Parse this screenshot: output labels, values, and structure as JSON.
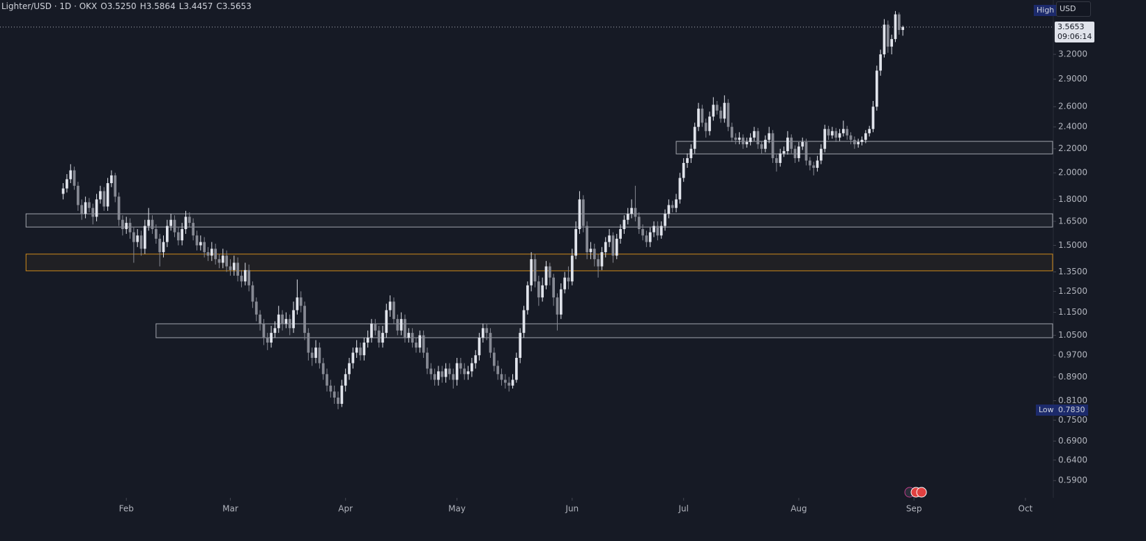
{
  "chart_data": {
    "type": "candlestick",
    "title": "Lighter/USD · 1D · OKX",
    "ohlc_text": [
      "O3.5250",
      "H3.5864",
      "L3.4457",
      "C3.5653"
    ],
    "currency": "USD",
    "high_marker": "High",
    "low_marker": {
      "label": "Low",
      "value": "0.7830"
    },
    "last_price": {
      "value": 3.5653,
      "label": "3.5653"
    },
    "countdown": "09:06:14",
    "up_color": "#e0e3eb",
    "down_color": "#868993",
    "log": true,
    "xlim": [
      -17,
      266.5
    ],
    "ylim": [
      0.551,
      3.97
    ],
    "xticks": [
      {
        "value": 17,
        "label": "Feb"
      },
      {
        "value": 45,
        "label": "Mar"
      },
      {
        "value": 76,
        "label": "Apr"
      },
      {
        "value": 106,
        "label": "May"
      },
      {
        "value": 137,
        "label": "Jun"
      },
      {
        "value": 167,
        "label": "Jul"
      },
      {
        "value": 198,
        "label": "Aug"
      },
      {
        "value": 229,
        "label": "Sep"
      },
      {
        "value": 259,
        "label": "Oct"
      }
    ],
    "yticks": [
      {
        "value": 3.2,
        "label": "3.2000"
      },
      {
        "value": 2.9,
        "label": "2.9000"
      },
      {
        "value": 2.6,
        "label": "2.6000"
      },
      {
        "value": 2.4,
        "label": "2.4000"
      },
      {
        "value": 2.2,
        "label": "2.2000"
      },
      {
        "value": 2.0,
        "label": "2.0000"
      },
      {
        "value": 1.8,
        "label": "1.8000"
      },
      {
        "value": 1.65,
        "label": "1.6500"
      },
      {
        "value": 1.5,
        "label": "1.5000"
      },
      {
        "value": 1.35,
        "label": "1.3500"
      },
      {
        "value": 1.25,
        "label": "1.2500"
      },
      {
        "value": 1.15,
        "label": "1.1500"
      },
      {
        "value": 1.05,
        "label": "1.0500"
      },
      {
        "value": 0.97,
        "label": "0.9700"
      },
      {
        "value": 0.89,
        "label": "0.8900"
      },
      {
        "value": 0.81,
        "label": "0.8100"
      },
      {
        "value": 0.75,
        "label": "0.7500"
      },
      {
        "value": 0.69,
        "label": "0.6900"
      },
      {
        "value": 0.64,
        "label": "0.6400"
      },
      {
        "value": 0.59,
        "label": "0.5900"
      }
    ],
    "zones": [
      {
        "start": -10,
        "low": 1.613,
        "high": 1.7,
        "color": "#a3a6af"
      },
      {
        "start": -10,
        "low": 1.356,
        "high": 1.449,
        "color": "#d18b1b"
      },
      {
        "start": 25,
        "low": 1.04,
        "high": 1.099,
        "color": "#a3a6af"
      },
      {
        "start": 165,
        "low": 2.156,
        "high": 2.266,
        "color": "#a3a6af"
      }
    ],
    "candles": [
      [
        1.84,
        1.92,
        1.8,
        1.88
      ],
      [
        1.88,
        1.99,
        1.85,
        1.95
      ],
      [
        1.95,
        2.07,
        1.92,
        2.02
      ],
      [
        2.02,
        2.05,
        1.87,
        1.9
      ],
      [
        1.9,
        1.93,
        1.72,
        1.76
      ],
      [
        1.76,
        1.8,
        1.66,
        1.7
      ],
      [
        1.7,
        1.82,
        1.67,
        1.78
      ],
      [
        1.78,
        1.81,
        1.71,
        1.74
      ],
      [
        1.74,
        1.77,
        1.63,
        1.68
      ],
      [
        1.68,
        1.84,
        1.65,
        1.8
      ],
      [
        1.8,
        1.9,
        1.77,
        1.86
      ],
      [
        1.86,
        1.89,
        1.72,
        1.75
      ],
      [
        1.75,
        1.96,
        1.72,
        1.92
      ],
      [
        1.92,
        2.02,
        1.89,
        1.98
      ],
      [
        1.98,
        2.0,
        1.78,
        1.82
      ],
      [
        1.82,
        1.85,
        1.62,
        1.66
      ],
      [
        1.66,
        1.69,
        1.56,
        1.6
      ],
      [
        1.6,
        1.68,
        1.57,
        1.64
      ],
      [
        1.64,
        1.67,
        1.54,
        1.58
      ],
      [
        1.58,
        1.61,
        1.4,
        1.52
      ],
      [
        1.52,
        1.6,
        1.49,
        1.56
      ],
      [
        1.56,
        1.59,
        1.44,
        1.48
      ],
      [
        1.48,
        1.66,
        1.45,
        1.62
      ],
      [
        1.62,
        1.74,
        1.59,
        1.66
      ],
      [
        1.66,
        1.69,
        1.57,
        1.6
      ],
      [
        1.6,
        1.63,
        1.51,
        1.54
      ],
      [
        1.54,
        1.57,
        1.38,
        1.46
      ],
      [
        1.46,
        1.56,
        1.43,
        1.52
      ],
      [
        1.52,
        1.66,
        1.49,
        1.62
      ],
      [
        1.62,
        1.7,
        1.59,
        1.66
      ],
      [
        1.66,
        1.69,
        1.55,
        1.58
      ],
      [
        1.58,
        1.61,
        1.5,
        1.53
      ],
      [
        1.53,
        1.64,
        1.5,
        1.6
      ],
      [
        1.6,
        1.72,
        1.57,
        1.68
      ],
      [
        1.68,
        1.71,
        1.61,
        1.64
      ],
      [
        1.64,
        1.67,
        1.53,
        1.56
      ],
      [
        1.56,
        1.59,
        1.47,
        1.5
      ],
      [
        1.5,
        1.56,
        1.47,
        1.52
      ],
      [
        1.52,
        1.55,
        1.43,
        1.46
      ],
      [
        1.46,
        1.49,
        1.41,
        1.44
      ],
      [
        1.44,
        1.52,
        1.41,
        1.48
      ],
      [
        1.48,
        1.51,
        1.39,
        1.42
      ],
      [
        1.42,
        1.45,
        1.37,
        1.4
      ],
      [
        1.4,
        1.48,
        1.37,
        1.44
      ],
      [
        1.44,
        1.47,
        1.35,
        1.38
      ],
      [
        1.38,
        1.42,
        1.33,
        1.36
      ],
      [
        1.36,
        1.44,
        1.33,
        1.4
      ],
      [
        1.4,
        1.43,
        1.3,
        1.33
      ],
      [
        1.33,
        1.36,
        1.27,
        1.3
      ],
      [
        1.3,
        1.4,
        1.28,
        1.36
      ],
      [
        1.36,
        1.39,
        1.25,
        1.28
      ],
      [
        1.28,
        1.3,
        1.17,
        1.2
      ],
      [
        1.2,
        1.22,
        1.11,
        1.14
      ],
      [
        1.14,
        1.16,
        1.07,
        1.1
      ],
      [
        1.1,
        1.12,
        1.01,
        1.04
      ],
      [
        1.04,
        1.06,
        0.99,
        1.02
      ],
      [
        1.02,
        1.09,
        1.0,
        1.06
      ],
      [
        1.06,
        1.11,
        1.04,
        1.08
      ],
      [
        1.08,
        1.18,
        1.06,
        1.14
      ],
      [
        1.14,
        1.16,
        1.07,
        1.1
      ],
      [
        1.1,
        1.15,
        1.08,
        1.12
      ],
      [
        1.12,
        1.14,
        1.05,
        1.08
      ],
      [
        1.08,
        1.2,
        1.06,
        1.16
      ],
      [
        1.16,
        1.31,
        1.14,
        1.22
      ],
      [
        1.22,
        1.25,
        1.15,
        1.18
      ],
      [
        1.18,
        1.2,
        1.03,
        1.06
      ],
      [
        1.06,
        1.08,
        0.95,
        0.98
      ],
      [
        0.98,
        1.0,
        0.93,
        0.96
      ],
      [
        0.96,
        1.03,
        0.94,
        1.0
      ],
      [
        1.0,
        1.02,
        0.92,
        0.94
      ],
      [
        0.94,
        0.96,
        0.88,
        0.9
      ],
      [
        0.9,
        0.92,
        0.84,
        0.86
      ],
      [
        0.86,
        0.88,
        0.82,
        0.84
      ],
      [
        0.84,
        0.86,
        0.8,
        0.82
      ],
      [
        0.82,
        0.84,
        0.783,
        0.8
      ],
      [
        0.8,
        0.88,
        0.79,
        0.86
      ],
      [
        0.86,
        0.92,
        0.84,
        0.9
      ],
      [
        0.9,
        0.96,
        0.88,
        0.94
      ],
      [
        0.94,
        1.0,
        0.92,
        0.98
      ],
      [
        0.98,
        1.03,
        0.96,
        1.0
      ],
      [
        1.0,
        1.02,
        0.95,
        0.97
      ],
      [
        0.97,
        1.04,
        0.95,
        1.02
      ],
      [
        1.02,
        1.07,
        1.0,
        1.04
      ],
      [
        1.04,
        1.12,
        1.02,
        1.1
      ],
      [
        1.1,
        1.12,
        1.05,
        1.07
      ],
      [
        1.07,
        1.09,
        1.0,
        1.02
      ],
      [
        1.02,
        1.09,
        1.0,
        1.06
      ],
      [
        1.06,
        1.19,
        1.04,
        1.16
      ],
      [
        1.16,
        1.23,
        1.13,
        1.2
      ],
      [
        1.2,
        1.22,
        1.1,
        1.12
      ],
      [
        1.12,
        1.14,
        1.05,
        1.07
      ],
      [
        1.07,
        1.15,
        1.05,
        1.12
      ],
      [
        1.12,
        1.14,
        1.02,
        1.04
      ],
      [
        1.04,
        1.08,
        1.02,
        1.06
      ],
      [
        1.06,
        1.08,
        1.0,
        1.02
      ],
      [
        1.02,
        1.04,
        0.98,
        1.0
      ],
      [
        1.0,
        1.07,
        0.98,
        1.05
      ],
      [
        1.05,
        1.07,
        0.96,
        0.98
      ],
      [
        0.98,
        1.0,
        0.9,
        0.92
      ],
      [
        0.92,
        0.94,
        0.88,
        0.9
      ],
      [
        0.9,
        0.92,
        0.86,
        0.88
      ],
      [
        0.88,
        0.93,
        0.86,
        0.91
      ],
      [
        0.91,
        0.93,
        0.87,
        0.89
      ],
      [
        0.89,
        0.94,
        0.87,
        0.92
      ],
      [
        0.92,
        0.94,
        0.88,
        0.9
      ],
      [
        0.9,
        0.92,
        0.85,
        0.88
      ],
      [
        0.88,
        0.96,
        0.86,
        0.94
      ],
      [
        0.94,
        0.96,
        0.9,
        0.92
      ],
      [
        0.92,
        0.94,
        0.88,
        0.9
      ],
      [
        0.9,
        0.93,
        0.88,
        0.91
      ],
      [
        0.91,
        0.96,
        0.89,
        0.94
      ],
      [
        0.94,
        0.99,
        0.92,
        0.97
      ],
      [
        0.97,
        1.06,
        0.95,
        1.04
      ],
      [
        1.04,
        1.1,
        1.02,
        1.08
      ],
      [
        1.08,
        1.1,
        1.03,
        1.06
      ],
      [
        1.06,
        1.08,
        0.96,
        0.98
      ],
      [
        0.98,
        1.0,
        0.91,
        0.93
      ],
      [
        0.93,
        0.95,
        0.88,
        0.9
      ],
      [
        0.9,
        0.92,
        0.86,
        0.88
      ],
      [
        0.88,
        0.9,
        0.85,
        0.87
      ],
      [
        0.87,
        0.89,
        0.84,
        0.86
      ],
      [
        0.86,
        0.9,
        0.85,
        0.88
      ],
      [
        0.88,
        0.98,
        0.87,
        0.96
      ],
      [
        0.96,
        1.08,
        0.94,
        1.06
      ],
      [
        1.06,
        1.18,
        1.04,
        1.16
      ],
      [
        1.16,
        1.3,
        1.14,
        1.28
      ],
      [
        1.28,
        1.46,
        1.25,
        1.42
      ],
      [
        1.42,
        1.45,
        1.27,
        1.3
      ],
      [
        1.3,
        1.33,
        1.18,
        1.22
      ],
      [
        1.22,
        1.32,
        1.2,
        1.28
      ],
      [
        1.28,
        1.41,
        1.26,
        1.38
      ],
      [
        1.38,
        1.4,
        1.28,
        1.32
      ],
      [
        1.32,
        1.34,
        1.18,
        1.22
      ],
      [
        1.22,
        1.24,
        1.07,
        1.14
      ],
      [
        1.14,
        1.29,
        1.12,
        1.26
      ],
      [
        1.26,
        1.35,
        1.24,
        1.32
      ],
      [
        1.32,
        1.38,
        1.26,
        1.3
      ],
      [
        1.3,
        1.48,
        1.28,
        1.44
      ],
      [
        1.44,
        1.65,
        1.42,
        1.6
      ],
      [
        1.6,
        1.86,
        1.57,
        1.8
      ],
      [
        1.8,
        1.83,
        1.58,
        1.62
      ],
      [
        1.62,
        1.65,
        1.42,
        1.46
      ],
      [
        1.46,
        1.52,
        1.42,
        1.48
      ],
      [
        1.48,
        1.51,
        1.38,
        1.42
      ],
      [
        1.42,
        1.45,
        1.32,
        1.38
      ],
      [
        1.38,
        1.49,
        1.36,
        1.46
      ],
      [
        1.46,
        1.55,
        1.43,
        1.52
      ],
      [
        1.52,
        1.6,
        1.49,
        1.56
      ],
      [
        1.56,
        1.58,
        1.4,
        1.44
      ],
      [
        1.44,
        1.57,
        1.42,
        1.54
      ],
      [
        1.54,
        1.63,
        1.51,
        1.6
      ],
      [
        1.6,
        1.69,
        1.57,
        1.66
      ],
      [
        1.66,
        1.74,
        1.63,
        1.7
      ],
      [
        1.7,
        1.8,
        1.67,
        1.74
      ],
      [
        1.74,
        1.9,
        1.65,
        1.68
      ],
      [
        1.68,
        1.71,
        1.57,
        1.6
      ],
      [
        1.6,
        1.63,
        1.53,
        1.56
      ],
      [
        1.56,
        1.59,
        1.49,
        1.52
      ],
      [
        1.52,
        1.61,
        1.49,
        1.58
      ],
      [
        1.58,
        1.65,
        1.55,
        1.62
      ],
      [
        1.62,
        1.65,
        1.53,
        1.56
      ],
      [
        1.56,
        1.65,
        1.54,
        1.62
      ],
      [
        1.62,
        1.73,
        1.59,
        1.7
      ],
      [
        1.7,
        1.8,
        1.67,
        1.76
      ],
      [
        1.76,
        1.79,
        1.71,
        1.74
      ],
      [
        1.74,
        1.84,
        1.71,
        1.8
      ],
      [
        1.8,
        2.0,
        1.77,
        1.96
      ],
      [
        1.96,
        2.12,
        1.93,
        2.08
      ],
      [
        2.08,
        2.16,
        2.04,
        2.12
      ],
      [
        2.12,
        2.24,
        2.08,
        2.2
      ],
      [
        2.2,
        2.44,
        2.16,
        2.4
      ],
      [
        2.4,
        2.64,
        2.36,
        2.58
      ],
      [
        2.58,
        2.62,
        2.4,
        2.44
      ],
      [
        2.44,
        2.48,
        2.3,
        2.36
      ],
      [
        2.36,
        2.55,
        2.32,
        2.5
      ],
      [
        2.5,
        2.7,
        2.46,
        2.62
      ],
      [
        2.62,
        2.66,
        2.52,
        2.56
      ],
      [
        2.56,
        2.6,
        2.44,
        2.48
      ],
      [
        2.48,
        2.72,
        2.44,
        2.64
      ],
      [
        2.64,
        2.68,
        2.36,
        2.4
      ],
      [
        2.4,
        2.44,
        2.26,
        2.3
      ],
      [
        2.3,
        2.34,
        2.24,
        2.28
      ],
      [
        2.28,
        2.35,
        2.24,
        2.3
      ],
      [
        2.3,
        2.33,
        2.2,
        2.24
      ],
      [
        2.24,
        2.3,
        2.21,
        2.26
      ],
      [
        2.26,
        2.34,
        2.23,
        2.3
      ],
      [
        2.3,
        2.4,
        2.27,
        2.36
      ],
      [
        2.36,
        2.39,
        2.2,
        2.24
      ],
      [
        2.24,
        2.27,
        2.16,
        2.2
      ],
      [
        2.2,
        2.32,
        2.17,
        2.28
      ],
      [
        2.28,
        2.4,
        2.25,
        2.34
      ],
      [
        2.34,
        2.37,
        2.08,
        2.12
      ],
      [
        2.12,
        2.15,
        2.01,
        2.08
      ],
      [
        2.08,
        2.2,
        2.05,
        2.16
      ],
      [
        2.16,
        2.22,
        2.13,
        2.18
      ],
      [
        2.18,
        2.36,
        2.15,
        2.3
      ],
      [
        2.3,
        2.33,
        2.16,
        2.2
      ],
      [
        2.2,
        2.23,
        2.08,
        2.12
      ],
      [
        2.12,
        2.26,
        2.09,
        2.22
      ],
      [
        2.22,
        2.3,
        2.19,
        2.26
      ],
      [
        2.26,
        2.29,
        2.06,
        2.1
      ],
      [
        2.1,
        2.13,
        2.02,
        2.06
      ],
      [
        2.06,
        2.09,
        1.98,
        2.04
      ],
      [
        2.04,
        2.14,
        2.01,
        2.1
      ],
      [
        2.1,
        2.24,
        2.07,
        2.2
      ],
      [
        2.2,
        2.42,
        2.17,
        2.38
      ],
      [
        2.38,
        2.41,
        2.28,
        2.32
      ],
      [
        2.32,
        2.4,
        2.29,
        2.36
      ],
      [
        2.36,
        2.39,
        2.26,
        2.3
      ],
      [
        2.3,
        2.38,
        2.27,
        2.34
      ],
      [
        2.34,
        2.46,
        2.31,
        2.38
      ],
      [
        2.38,
        2.41,
        2.28,
        2.32
      ],
      [
        2.32,
        2.35,
        2.24,
        2.28
      ],
      [
        2.28,
        2.31,
        2.2,
        2.24
      ],
      [
        2.24,
        2.29,
        2.21,
        2.26
      ],
      [
        2.26,
        2.31,
        2.23,
        2.28
      ],
      [
        2.28,
        2.37,
        2.25,
        2.34
      ],
      [
        2.34,
        2.41,
        2.31,
        2.38
      ],
      [
        2.38,
        2.66,
        2.35,
        2.6
      ],
      [
        2.6,
        3.06,
        2.56,
        3.0
      ],
      [
        3.0,
        3.26,
        2.94,
        3.2
      ],
      [
        3.2,
        3.68,
        3.16,
        3.6
      ],
      [
        3.6,
        3.66,
        3.22,
        3.3
      ],
      [
        3.3,
        3.46,
        3.2,
        3.4
      ],
      [
        3.4,
        3.8,
        3.36,
        3.75
      ],
      [
        3.75,
        3.78,
        3.46,
        3.525
      ],
      [
        3.525,
        3.5864,
        3.4457,
        3.5653
      ]
    ]
  }
}
